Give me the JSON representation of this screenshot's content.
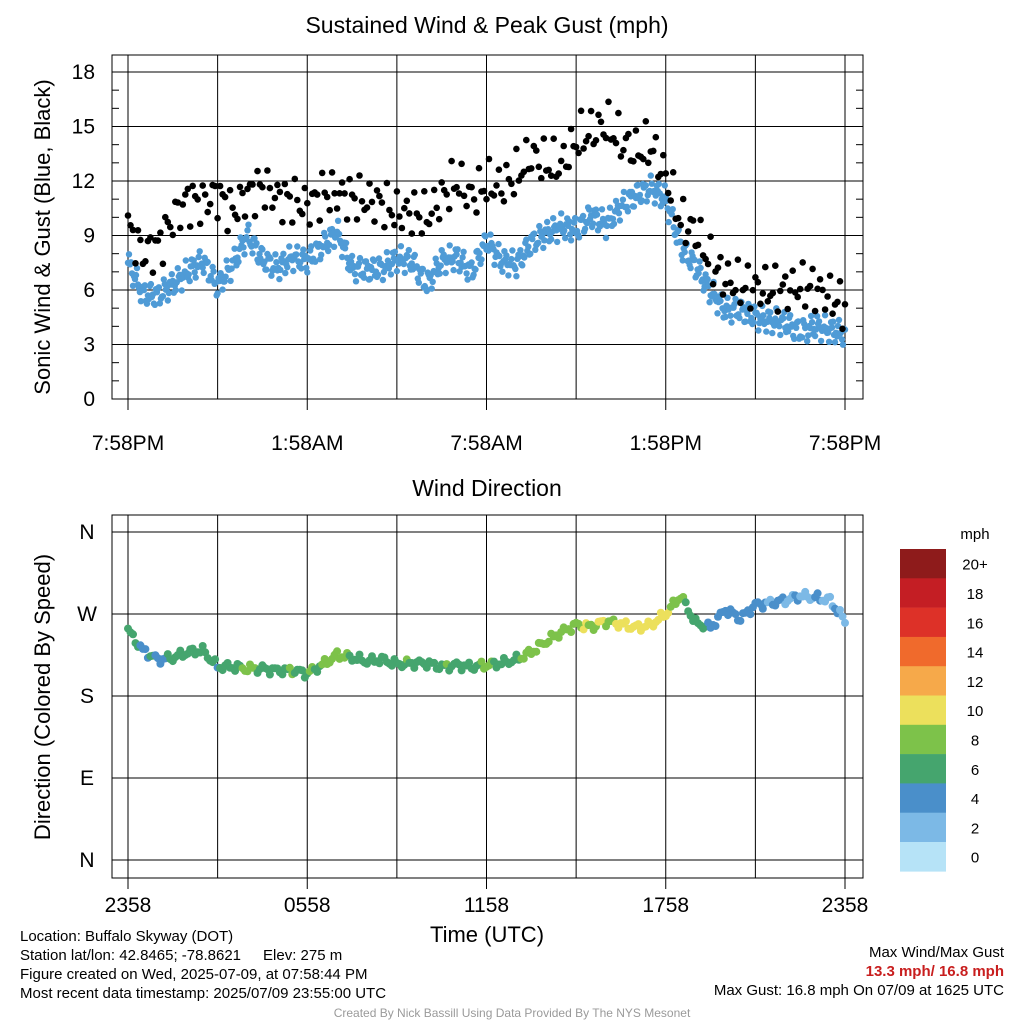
{
  "chart_data": [
    {
      "type": "scatter",
      "title": "Sustained Wind & Peak Gust (mph)",
      "ylabel": "Sonic Wind & Gust (Blue, Black)",
      "xlabel": "",
      "x_ticks": [
        "7:58PM",
        "1:58AM",
        "7:58AM",
        "1:58PM",
        "7:58PM"
      ],
      "x_range_hours": [
        0,
        24
      ],
      "ylim": [
        0,
        18
      ],
      "y_ticks": [
        "0",
        "3",
        "6",
        "9",
        "12",
        "15",
        "18"
      ],
      "grid": true,
      "series": [
        {
          "color": "#4f9bd6",
          "x_hours": [
            0,
            0.5,
            1,
            1.5,
            2,
            2.5,
            3,
            3.5,
            4,
            4.5,
            5,
            5.5,
            6,
            6.5,
            7,
            7.5,
            8,
            8.5,
            9,
            9.5,
            10,
            10.5,
            11,
            11.5,
            12,
            12.5,
            13,
            13.5,
            14,
            14.5,
            15,
            15.5,
            16,
            16.5,
            17,
            17.5,
            18,
            18.5,
            19,
            19.5,
            20,
            20.5,
            21,
            21.5,
            22,
            22.5,
            23,
            23.5,
            24
          ],
          "values": [
            7.5,
            5.8,
            5.7,
            6.3,
            7.0,
            7.6,
            6.2,
            7.4,
            9.0,
            7.7,
            7.2,
            7.8,
            7.6,
            8.4,
            9.2,
            7.2,
            7.1,
            7.2,
            7.7,
            7.6,
            6.3,
            7.6,
            7.8,
            7.0,
            8.7,
            7.6,
            7.4,
            8.6,
            9.1,
            9.5,
            9.3,
            10.1,
            9.6,
            10.6,
            11.2,
            11.6,
            11.0,
            8.4,
            7.3,
            5.9,
            4.9,
            4.9,
            4.5,
            4.3,
            4.2,
            3.7,
            4.0,
            3.8,
            3.6
          ]
        },
        {
          "color": "#000000",
          "x_hours": [
            0,
            0.5,
            1,
            1.5,
            2,
            2.5,
            3,
            3.5,
            4,
            4.5,
            5,
            5.5,
            6,
            6.5,
            7,
            7.5,
            8,
            8.5,
            9,
            9.5,
            10,
            10.5,
            11,
            11.5,
            12,
            12.5,
            13,
            13.5,
            14,
            14.5,
            15,
            15.5,
            16,
            16.5,
            17,
            17.5,
            18,
            18.5,
            19,
            19.5,
            20,
            20.5,
            21,
            21.5,
            22,
            22.5,
            23,
            23.5,
            24
          ],
          "values": [
            9.5,
            8.0,
            8.4,
            9.9,
            11.0,
            10.8,
            11.3,
            10.3,
            11.3,
            11.7,
            11.1,
            11.0,
            10.6,
            11.3,
            11.3,
            11.1,
            10.9,
            10.8,
            10.2,
            10.3,
            10.0,
            11.1,
            12.0,
            11.1,
            11.8,
            11.7,
            12.3,
            13.4,
            12.9,
            12.9,
            14.2,
            14.7,
            15.1,
            14.2,
            13.6,
            13.9,
            12.3,
            9.8,
            9.2,
            7.5,
            6.6,
            6.2,
            6.1,
            6.0,
            6.0,
            6.2,
            6.1,
            5.6,
            5.1
          ]
        }
      ]
    },
    {
      "type": "scatter",
      "title": "Wind Direction",
      "xlabel": "Time (UTC)",
      "ylabel": "Direction (Colored By Speed)",
      "x_ticks": [
        "2358",
        "0558",
        "1158",
        "1758",
        "2358"
      ],
      "x_range_hours": [
        0,
        24
      ],
      "ylim_degrees": [
        0,
        360
      ],
      "y_ticks": [
        "N",
        "E",
        "S",
        "W",
        "N"
      ],
      "grid": true,
      "x_hours": [
        0,
        0.5,
        1,
        1.5,
        2,
        2.5,
        3,
        3.5,
        4,
        4.5,
        5,
        5.5,
        6,
        6.5,
        7,
        7.5,
        8,
        8.5,
        9,
        9.5,
        10,
        10.5,
        11,
        11.5,
        12,
        12.5,
        13,
        13.5,
        14,
        14.5,
        15,
        15.5,
        16,
        16.5,
        17,
        17.5,
        18,
        18.5,
        19,
        19.5,
        20,
        20.5,
        21,
        21.5,
        22,
        22.5,
        23,
        23.5,
        24
      ],
      "direction_degrees": [
        252,
        230,
        220,
        222,
        228,
        230,
        212,
        212,
        210,
        210,
        208,
        208,
        205,
        214,
        225,
        222,
        218,
        220,
        215,
        216,
        216,
        212,
        214,
        212,
        214,
        216,
        220,
        228,
        240,
        250,
        258,
        256,
        262,
        259,
        255,
        258,
        270,
        290,
        260,
        255,
        275,
        265,
        280,
        282,
        285,
        290,
        288,
        285,
        262
      ],
      "speed_mph": [
        7.5,
        5.8,
        5.7,
        6.3,
        7.0,
        7.6,
        6.2,
        7.4,
        9.0,
        7.7,
        7.2,
        7.8,
        7.6,
        8.4,
        9.2,
        7.2,
        7.1,
        7.2,
        7.7,
        7.6,
        6.3,
        7.6,
        7.8,
        7.0,
        8.7,
        7.6,
        7.4,
        8.6,
        9.1,
        9.5,
        9.3,
        10.1,
        9.6,
        10.6,
        11.2,
        11.6,
        11.0,
        8.4,
        7.3,
        5.9,
        4.9,
        4.9,
        4.5,
        4.3,
        4.2,
        3.7,
        4.0,
        3.8,
        3.6
      ],
      "colorbar": {
        "title": "mph",
        "labels": [
          "20+",
          "18",
          "16",
          "14",
          "12",
          "10",
          "8",
          "6",
          "4",
          "2",
          "0"
        ],
        "colors": [
          "#8e1b1b",
          "#c41e24",
          "#dd3128",
          "#f06a2c",
          "#f6a94a",
          "#ece05c",
          "#7dc24a",
          "#45a56e",
          "#4a8fca",
          "#7cb9e6",
          "#b6e3f7"
        ]
      }
    }
  ],
  "footer": {
    "location": "Location: Buffalo Skyway (DOT)",
    "latlon": "Station lat/lon: 42.8465; -78.8621",
    "elev": "Elev: 275 m",
    "created": "Figure created on Wed, 2025-07-09, at 07:58:44 PM",
    "recent": "Most recent data timestamp: 2025/07/09 23:55:00 UTC",
    "max_title": "Max Wind/Max Gust",
    "max_values": "13.3 mph/ 16.8 mph",
    "max_gust": "Max Gust: 16.8 mph On 07/09 at 1625 UTC",
    "credit": "Created By Nick Bassill Using Data Provided By The NYS Mesonet"
  }
}
